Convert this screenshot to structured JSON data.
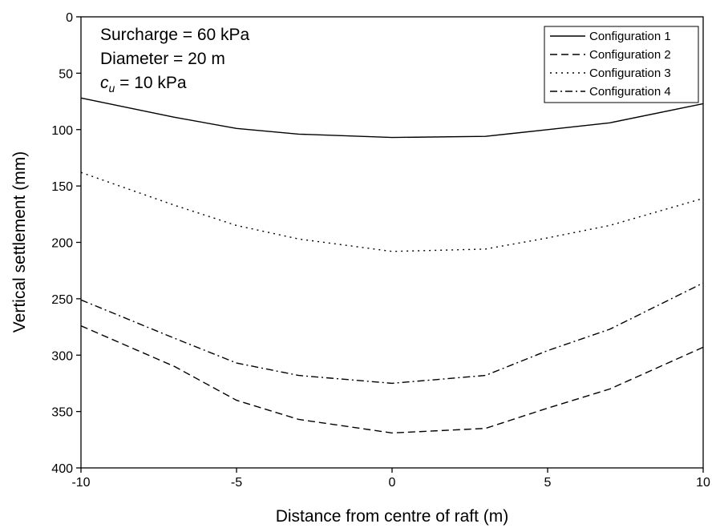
{
  "chart_data": {
    "type": "line",
    "xlabel": "Distance from centre of raft (m)",
    "ylabel": "Vertical settlement (mm)",
    "xlim": [
      -10,
      10
    ],
    "ylim": [
      0,
      400
    ],
    "y_inverted": true,
    "xticks": [
      -10,
      -5,
      0,
      5,
      10
    ],
    "yticks": [
      0,
      50,
      100,
      150,
      200,
      250,
      300,
      350,
      400
    ],
    "grid": false,
    "legend_position": "top-right",
    "annotations": {
      "surcharge": "Surcharge = 60 kPa",
      "diameter": "Diameter = 20 m",
      "cu_symbol": "c",
      "cu_subscript": "u",
      "cu_value": " = 10 kPa"
    },
    "series": [
      {
        "name": "Configuration 1",
        "dash": "solid",
        "points": [
          [
            -10,
            72
          ],
          [
            -7,
            89
          ],
          [
            -5,
            99
          ],
          [
            -3,
            104
          ],
          [
            0,
            107
          ],
          [
            3,
            106
          ],
          [
            5,
            100
          ],
          [
            7,
            94
          ],
          [
            10,
            77
          ]
        ]
      },
      {
        "name": "Configuration 2",
        "dash": "dashed",
        "points": [
          [
            -10,
            274
          ],
          [
            -7,
            310
          ],
          [
            -5,
            340
          ],
          [
            -3,
            357
          ],
          [
            0,
            369
          ],
          [
            3,
            365
          ],
          [
            5,
            347
          ],
          [
            7,
            330
          ],
          [
            10,
            293
          ]
        ]
      },
      {
        "name": "Configuration 3",
        "dash": "dotted",
        "points": [
          [
            -10,
            138
          ],
          [
            -7,
            167
          ],
          [
            -5,
            185
          ],
          [
            -3,
            197
          ],
          [
            0,
            208
          ],
          [
            3,
            206
          ],
          [
            5,
            196
          ],
          [
            7,
            185
          ],
          [
            10,
            161
          ]
        ]
      },
      {
        "name": "Configuration 4",
        "dash": "dashdot",
        "points": [
          [
            -10,
            251
          ],
          [
            -7,
            285
          ],
          [
            -5,
            307
          ],
          [
            -3,
            318
          ],
          [
            0,
            325
          ],
          [
            3,
            318
          ],
          [
            5,
            296
          ],
          [
            7,
            277
          ],
          [
            10,
            236
          ]
        ]
      }
    ]
  }
}
